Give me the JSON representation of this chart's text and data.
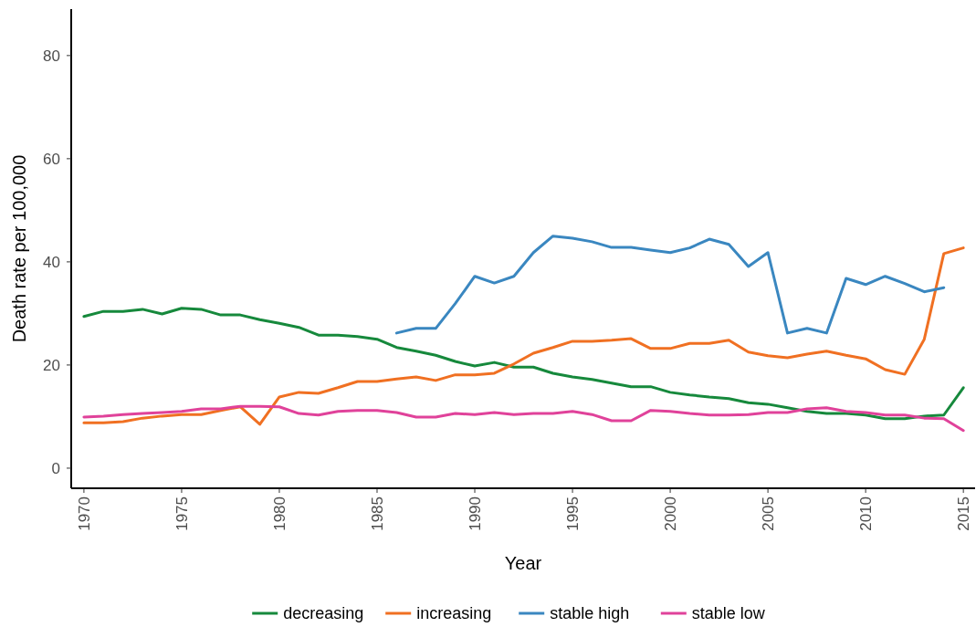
{
  "chart_data": {
    "type": "line",
    "xlabel": "Year",
    "ylabel": "Death rate per 100,000",
    "xlim": [
      1969.35,
      2015.6
    ],
    "ylim": [
      -3.9,
      89
    ],
    "xticks": [
      {
        "value": 1970,
        "label": "1970"
      },
      {
        "value": 1975,
        "label": "1975"
      },
      {
        "value": 1980,
        "label": "1980"
      },
      {
        "value": 1985,
        "label": "1985"
      },
      {
        "value": 1990,
        "label": "1990"
      },
      {
        "value": 1995,
        "label": "1995"
      },
      {
        "value": 2000,
        "label": "2000"
      },
      {
        "value": 2005,
        "label": "2005"
      },
      {
        "value": 2010,
        "label": "2010"
      },
      {
        "value": 2015,
        "label": "2015"
      }
    ],
    "yticks": [
      0,
      20,
      40,
      60,
      80
    ],
    "grid": false,
    "legend": "bottom",
    "marker": "none",
    "line_style": "solid",
    "series": [
      {
        "name": "decreasing",
        "color": "#16893c",
        "x": [
          1970,
          1971,
          1972,
          1973,
          1974,
          1975,
          1976,
          1977,
          1978,
          1979,
          1980,
          1981,
          1982,
          1983,
          1984,
          1985,
          1986,
          1987,
          1988,
          1989,
          1990,
          1991,
          1992,
          1993,
          1994,
          1995,
          1996,
          1997,
          1998,
          1999,
          2000,
          2001,
          2002,
          2003,
          2004,
          2005,
          2006,
          2007,
          2008,
          2009,
          2010,
          2011,
          2012,
          2013,
          2014,
          2015
        ],
        "values": [
          29.4,
          30.4,
          30.4,
          30.8,
          29.9,
          31.0,
          30.8,
          29.7,
          29.7,
          28.8,
          28.1,
          27.3,
          25.8,
          25.8,
          25.5,
          25.0,
          23.4,
          22.7,
          21.9,
          20.7,
          19.8,
          20.5,
          19.6,
          19.6,
          18.4,
          17.7,
          17.2,
          16.5,
          15.8,
          15.8,
          14.7,
          14.2,
          13.8,
          13.5,
          12.7,
          12.4,
          11.7,
          11.0,
          10.6,
          10.6,
          10.3,
          9.6,
          9.6,
          10.1,
          10.3,
          15.6
        ]
      },
      {
        "name": "increasing",
        "color": "#f07022",
        "x": [
          1970,
          1971,
          1972,
          1973,
          1974,
          1975,
          1976,
          1977,
          1978,
          1979,
          1980,
          1981,
          1982,
          1983,
          1984,
          1985,
          1986,
          1987,
          1988,
          1989,
          1990,
          1991,
          1992,
          1993,
          1994,
          1995,
          1996,
          1997,
          1998,
          1999,
          2000,
          2001,
          2002,
          2003,
          2004,
          2005,
          2006,
          2007,
          2008,
          2009,
          2010,
          2011,
          2012,
          2013,
          2014,
          2015
        ],
        "values": [
          8.8,
          8.8,
          9.0,
          9.7,
          10.1,
          10.4,
          10.4,
          11.2,
          11.9,
          8.5,
          13.8,
          14.7,
          14.5,
          15.6,
          16.8,
          16.8,
          17.3,
          17.7,
          17.0,
          18.1,
          18.1,
          18.4,
          20.2,
          22.3,
          23.4,
          24.6,
          24.6,
          24.8,
          25.1,
          23.2,
          23.2,
          24.2,
          24.2,
          24.8,
          22.5,
          21.8,
          21.4,
          22.1,
          22.7,
          21.9,
          21.2,
          19.1,
          18.2,
          25.0,
          41.6,
          42.7
        ]
      },
      {
        "name": "stable high",
        "color": "#3a87c0",
        "x": [
          1986,
          1987,
          1988,
          1989,
          1990,
          1991,
          1992,
          1993,
          1994,
          1995,
          1996,
          1997,
          1998,
          1999,
          2000,
          2001,
          2002,
          2003,
          2004,
          2005,
          2006,
          2007,
          2008,
          2009,
          2010,
          2011,
          2012,
          2013,
          2014
        ],
        "values": [
          26.2,
          27.1,
          27.1,
          31.9,
          37.2,
          35.9,
          37.2,
          41.8,
          45.0,
          44.6,
          43.9,
          42.8,
          42.8,
          42.3,
          41.8,
          42.7,
          44.4,
          43.4,
          39.1,
          41.8,
          26.2,
          27.1,
          26.2,
          36.8,
          35.6,
          37.2,
          35.8,
          34.2,
          35.0
        ]
      },
      {
        "name": "stable low",
        "color": "#e0429a",
        "x": [
          1970,
          1971,
          1972,
          1973,
          1974,
          1975,
          1976,
          1977,
          1978,
          1979,
          1980,
          1981,
          1982,
          1983,
          1984,
          1985,
          1986,
          1987,
          1988,
          1989,
          1990,
          1991,
          1992,
          1993,
          1994,
          1995,
          1996,
          1997,
          1998,
          1999,
          2000,
          2001,
          2002,
          2003,
          2004,
          2005,
          2006,
          2007,
          2008,
          2009,
          2010,
          2011,
          2012,
          2013,
          2014,
          2015
        ],
        "values": [
          9.9,
          10.1,
          10.4,
          10.6,
          10.8,
          11.0,
          11.5,
          11.5,
          12.0,
          12.0,
          11.9,
          10.6,
          10.3,
          11.0,
          11.2,
          11.2,
          10.8,
          9.9,
          9.9,
          10.6,
          10.4,
          10.8,
          10.4,
          10.6,
          10.6,
          11.0,
          10.4,
          9.2,
          9.2,
          11.2,
          11.0,
          10.6,
          10.3,
          10.3,
          10.4,
          10.8,
          10.8,
          11.5,
          11.7,
          11.0,
          10.8,
          10.3,
          10.3,
          9.7,
          9.6,
          7.3
        ]
      }
    ]
  }
}
